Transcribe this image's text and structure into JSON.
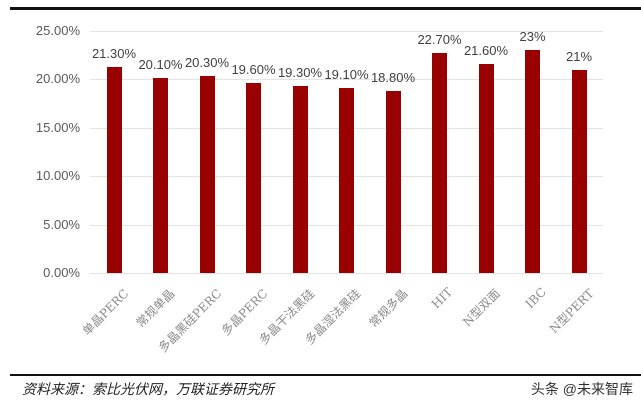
{
  "chart_data": {
    "type": "bar",
    "title": "",
    "xlabel": "",
    "ylabel": "",
    "categories": [
      "单晶PERC",
      "常规单晶",
      "多晶黑硅PERC",
      "多晶PERC",
      "多晶干法黑硅",
      "多晶湿法黑硅",
      "常规多晶",
      "HIT",
      "N型双面",
      "IBC",
      "N型PERT"
    ],
    "values": [
      21.3,
      20.1,
      20.3,
      19.6,
      19.3,
      19.1,
      18.8,
      22.7,
      21.6,
      23.0,
      21.0
    ],
    "data_labels": [
      "21.30%",
      "20.10%",
      "20.30%",
      "19.60%",
      "19.30%",
      "19.10%",
      "18.80%",
      "22.70%",
      "21.60%",
      "23%",
      "21%"
    ],
    "ylim": [
      0,
      25
    ],
    "yticks": [
      "0.00%",
      "5.00%",
      "10.00%",
      "15.00%",
      "20.00%",
      "25.00%"
    ],
    "grid": true,
    "legend": null,
    "bar_color": "#990000"
  },
  "footer": {
    "source": "资料来源：索比光伏网，万联证券研究所",
    "watermark": "头条 @未来智库"
  }
}
